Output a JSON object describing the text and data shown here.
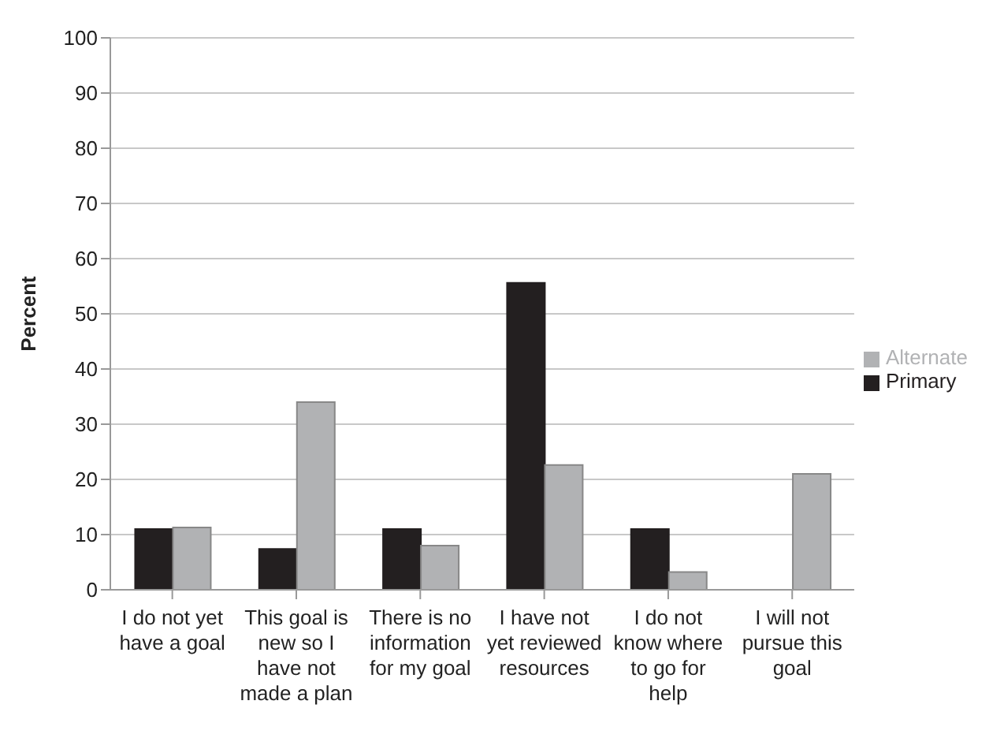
{
  "chart_data": {
    "type": "bar",
    "ylabel": "Percent",
    "categories": [
      "I do not yet have a goal",
      "This goal is new so I have not made a plan",
      "There is no information for my goal",
      "I have not yet reviewed resources",
      "I do not know where to go for help",
      "I will not pursue this goal"
    ],
    "series": [
      {
        "name": "Primary",
        "color": "#231f20",
        "values": [
          11,
          7.4,
          11,
          55.6,
          11,
          0
        ]
      },
      {
        "name": "Alternate",
        "color": "#b1b2b4",
        "values": [
          11.3,
          34,
          8,
          22.6,
          3.2,
          21
        ]
      }
    ],
    "ylim": [
      0,
      100
    ],
    "yticks": [
      0,
      10,
      20,
      30,
      40,
      50,
      60,
      70,
      80,
      90,
      100
    ],
    "grid": "y",
    "legend": "right"
  }
}
